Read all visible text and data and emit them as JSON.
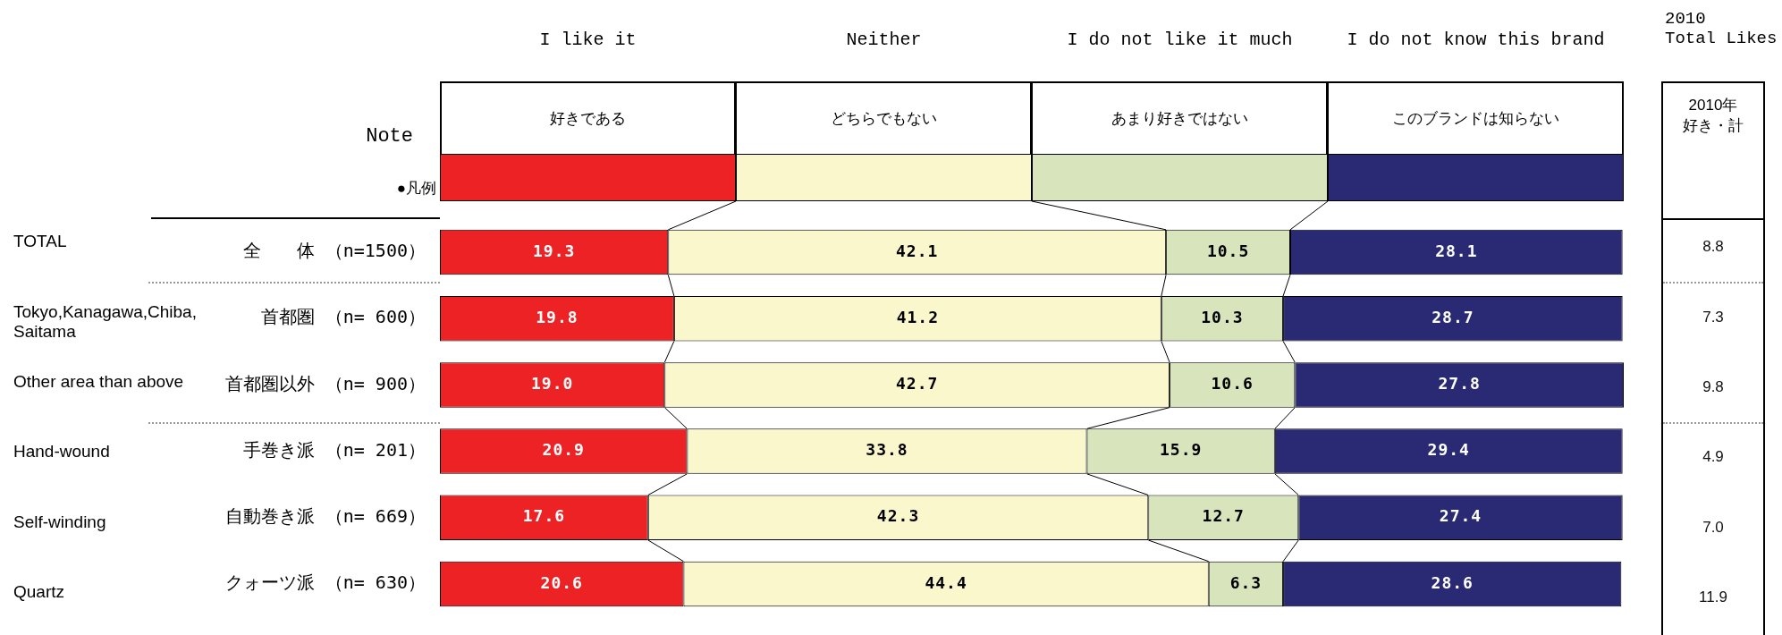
{
  "chart_data": [
    {
      "type": "bar",
      "orientation": "horizontal",
      "stacked": true,
      "categories": [
        "全　　体 （n=1500）",
        "首都圏 （n= 600）",
        "首都圏以外 （n= 900）",
        "手巻き派 （n= 201）",
        "自動巻き派 （n= 669）",
        "クォーツ派 （n= 630）"
      ],
      "series": [
        {
          "color": "#ed2224",
          "values": [
            19.3,
            19.8,
            19.0,
            20.9,
            17.6,
            20.6
          ],
          "value_labels": [
            "19.3",
            "19.8",
            "19.0",
            "20.9",
            "17.6",
            "20.6"
          ]
        },
        {
          "color": "#faf7cd",
          "values": [
            42.1,
            41.2,
            42.7,
            33.8,
            42.3,
            44.4
          ],
          "value_labels": [
            "42.1",
            "41.2",
            "42.7",
            "33.8",
            "42.3",
            "44.4"
          ]
        },
        {
          "color": "#d8e4bc",
          "values": [
            10.5,
            10.3,
            10.6,
            15.9,
            12.7,
            6.3
          ],
          "value_labels": [
            "10.5",
            "10.3",
            "10.6",
            "15.9",
            "12.7",
            "6.3"
          ]
        },
        {
          "color": "#292a73",
          "values": [
            28.1,
            28.7,
            27.8,
            29.4,
            27.4,
            28.6
          ],
          "value_labels": [
            "28.1",
            "28.7",
            "27.8",
            "29.4",
            "27.4",
            "28.6"
          ]
        }
      ],
      "tick_labels": "y",
      "annotations": [
        "I like it",
        "Neither",
        "I do not like it much",
        "I do not know this brand",
        "好きである",
        "どちらでもない",
        "あまり好きではない",
        "このブランドは知らない",
        "Note",
        "●凡例",
        "TOTAL",
        "Tokyo,Kanagawa,Chiba, Saitama",
        "Other area than above",
        "Hand-wound",
        "Self-winding",
        "Quartz"
      ]
    },
    {
      "type": "other",
      "title": "2010\nTotal Likes",
      "subtitle": "2010年好き・計",
      "values": [
        8.8,
        7.3,
        9.8,
        4.9,
        7.0,
        11.9
      ],
      "value_labels": [
        "8.8",
        "7.3",
        "9.8",
        "4.9",
        "7.0",
        "11.9"
      ]
    }
  ]
}
